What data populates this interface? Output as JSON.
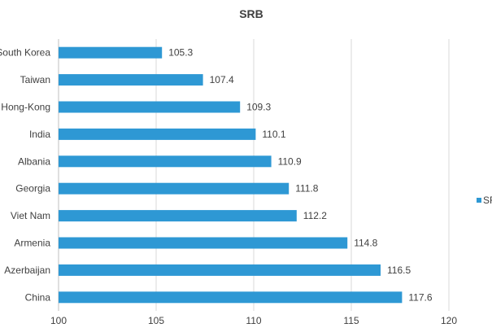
{
  "chart_data": {
    "type": "bar",
    "orientation": "horizontal",
    "title": "SRB",
    "categories": [
      "South Korea",
      "Taiwan",
      "Hong-Kong",
      "India",
      "Albania",
      "Georgia",
      "Viet Nam",
      "Armenia",
      "Azerbaijan",
      "China"
    ],
    "series": [
      {
        "name": "SRB",
        "values": [
          105.3,
          107.4,
          109.3,
          110.1,
          110.9,
          111.8,
          112.2,
          114.8,
          116.5,
          117.6
        ],
        "color": "#2e98d4"
      }
    ],
    "xlim": [
      100,
      120
    ],
    "xticks": [
      "100",
      "105",
      "110",
      "115",
      "120"
    ],
    "grid": true,
    "legend": "right"
  }
}
